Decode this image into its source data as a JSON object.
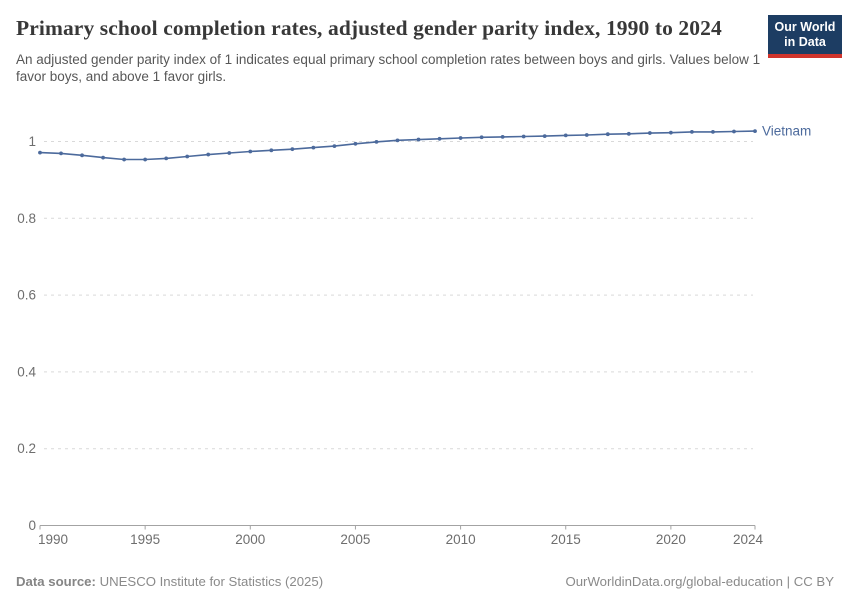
{
  "header": {
    "title": "Primary school completion rates, adjusted gender parity index, 1990 to 2024",
    "subtitle": "An adjusted gender parity index of 1 indicates equal primary school completion rates between boys and girls. Values below 1 favor boys, and above 1 favor girls.",
    "logo": {
      "line1": "Our World",
      "line2": "in Data",
      "bg": "#1d3d63",
      "accent": "#d0342c"
    }
  },
  "chart_data": {
    "type": "line",
    "title": "Primary school completion rates, adjusted gender parity index, 1990 to 2024",
    "x": [
      1990,
      1991,
      1992,
      1993,
      1994,
      1995,
      1996,
      1997,
      1998,
      1999,
      2000,
      2001,
      2002,
      2003,
      2004,
      2005,
      2006,
      2007,
      2008,
      2009,
      2010,
      2011,
      2012,
      2013,
      2014,
      2015,
      2016,
      2017,
      2018,
      2019,
      2020,
      2021,
      2022,
      2023,
      2024
    ],
    "series": [
      {
        "name": "Vietnam",
        "color": "#4c6a9c",
        "values": [
          0.971,
          0.969,
          0.964,
          0.958,
          0.953,
          0.953,
          0.956,
          0.961,
          0.966,
          0.97,
          0.974,
          0.977,
          0.98,
          0.984,
          0.988,
          0.994,
          0.999,
          1.003,
          1.005,
          1.007,
          1.009,
          1.011,
          1.012,
          1.013,
          1.014,
          1.016,
          1.017,
          1.019,
          1.02,
          1.022,
          1.023,
          1.025,
          1.025,
          1.026,
          1.027
        ]
      }
    ],
    "xlabel": "",
    "ylabel": "",
    "xlim": [
      1990,
      2024
    ],
    "ylim": [
      0,
      1.08
    ],
    "xticks": [
      1990,
      1995,
      2000,
      2005,
      2010,
      2015,
      2020,
      2024
    ],
    "yticks": [
      0,
      0.2,
      0.4,
      0.6,
      0.8,
      1
    ],
    "ytick_labels": [
      "0",
      "0.2",
      "0.4",
      "0.6",
      "0.8",
      "1"
    ],
    "grid": "dashed horizontal",
    "legend": "end-of-line entity label",
    "colors": {
      "grid": "#d9d9d9",
      "axis": "#a3a3a3",
      "tick_text": "#6e6e6e"
    }
  },
  "footer": {
    "datasource_label": "Data source:",
    "datasource_text": "UNESCO Institute for Statistics (2025)",
    "credit": "OurWorldinData.org/global-education | CC BY"
  }
}
